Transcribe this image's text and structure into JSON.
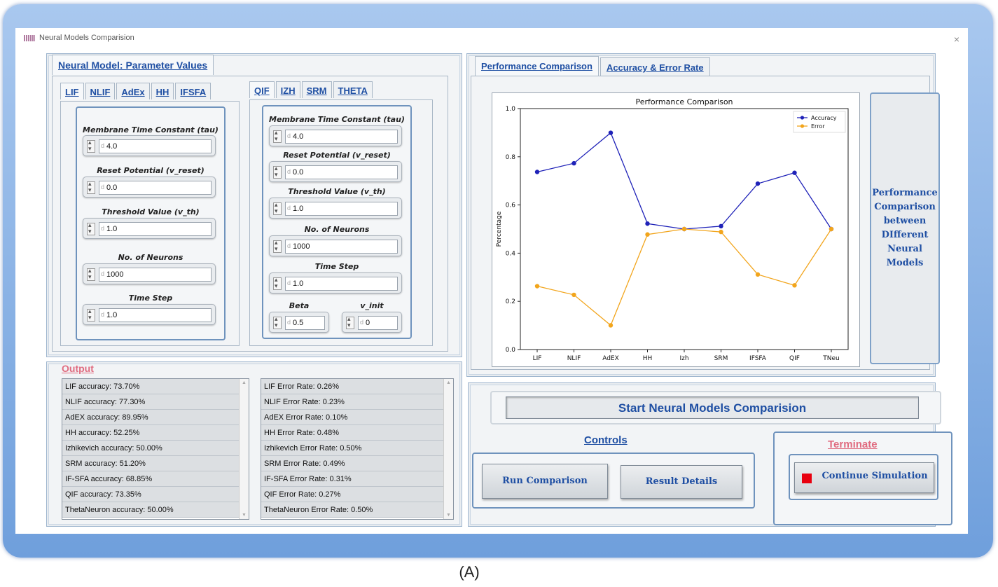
{
  "window": {
    "title": "Neural Models Comparision",
    "close": "×"
  },
  "params": {
    "panel_tab": "Neural Model: Parameter Values",
    "left_tabs": [
      "LIF",
      "NLIF",
      "AdEx",
      "HH",
      "IFSFA"
    ],
    "right_tabs": [
      "QIF",
      "IZH",
      "SRM",
      "THETA"
    ],
    "left_fields": [
      {
        "label": "Membrane Time Constant (tau)",
        "value": "4.0"
      },
      {
        "label": "Reset Potential (v_reset)",
        "value": "0.0"
      },
      {
        "label": "Threshold Value (v_th)",
        "value": "1.0"
      },
      {
        "label": "No. of Neurons",
        "value": "1000"
      },
      {
        "label": "Time Step",
        "value": "1.0"
      }
    ],
    "right_fields": [
      {
        "label": "Membrane Time Constant (tau)",
        "value": "4.0"
      },
      {
        "label": "Reset Potential (v_reset)",
        "value": "0.0"
      },
      {
        "label": "Threshold Value (v_th)",
        "value": "1.0"
      },
      {
        "label": "No. of Neurons",
        "value": "1000"
      },
      {
        "label": "Time Step",
        "value": "1.0"
      }
    ],
    "beta": {
      "label": "Beta",
      "value": "0.5"
    },
    "v_init": {
      "label": "v_init",
      "value": "0"
    }
  },
  "output": {
    "title": "Output",
    "accuracy": [
      "LIF accuracy: 73.70%",
      "NLIF accuracy: 77.30%",
      "AdEX accuracy: 89.95%",
      "HH accuracy: 52.25%",
      "Izhikevich accuracy: 50.00%",
      "SRM accuracy: 51.20%",
      "IF-SFA accuracy: 68.85%",
      "QIF accuracy: 73.35%",
      "ThetaNeuron accuracy: 50.00%"
    ],
    "error": [
      "LIF Error Rate: 0.26%",
      "NLIF Error Rate: 0.23%",
      "AdEX Error Rate: 0.10%",
      "HH Error Rate: 0.48%",
      "Izhikevich Error Rate: 0.50%",
      "SRM Error Rate: 0.49%",
      "IF-SFA Error Rate: 0.31%",
      "QIF Error Rate: 0.27%",
      "ThetaNeuron Error Rate: 0.50%"
    ]
  },
  "perf": {
    "tabs": [
      "Performance Comparison",
      "Accuracy & Error Rate"
    ],
    "side_text": [
      "Performance",
      "Comparison",
      "between",
      "DIfferent",
      "Neural",
      "Models"
    ]
  },
  "controls": {
    "start_label": "Start Neural Models Comparision",
    "controls_title": "Controls",
    "run_label": "Run Comparison",
    "details_label": "Result Details",
    "terminate_title": "Terminate",
    "continue_label": "Continue Simulation"
  },
  "caption": "(A)",
  "chart_data": {
    "type": "line",
    "title": "Performance Comparison",
    "xlabel": "",
    "ylabel": "Percentage",
    "categories": [
      "LIF",
      "NLIF",
      "AdEX",
      "HH",
      "Izh",
      "SRM",
      "IFSFA",
      "QIF",
      "TNeu"
    ],
    "series": [
      {
        "name": "Accuracy",
        "color": "#1f22b8",
        "values": [
          0.737,
          0.773,
          0.8995,
          0.5225,
          0.5,
          0.512,
          0.6885,
          0.7335,
          0.5
        ]
      },
      {
        "name": "Error",
        "color": "#f2a51c",
        "values": [
          0.263,
          0.227,
          0.1005,
          0.4775,
          0.5,
          0.488,
          0.3115,
          0.2665,
          0.5
        ]
      }
    ],
    "ylim": [
      0.0,
      1.0
    ],
    "yticks": [
      "0.0",
      "0.2",
      "0.4",
      "0.6",
      "0.8",
      "1.0"
    ],
    "legend": "top-right",
    "grid": false
  }
}
